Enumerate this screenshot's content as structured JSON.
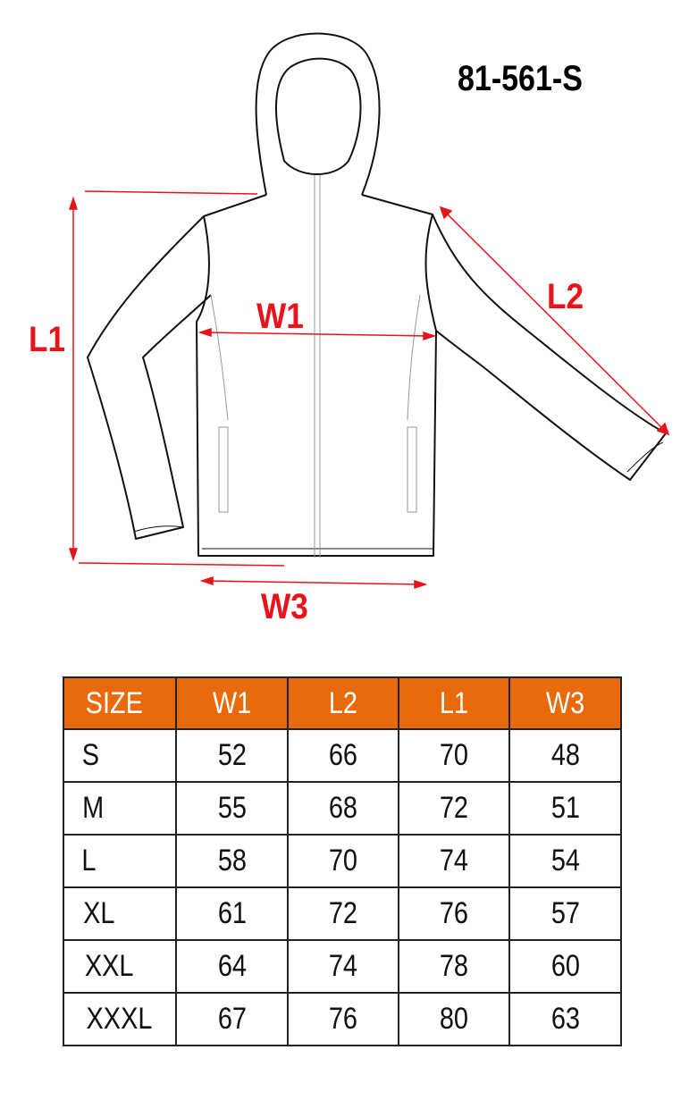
{
  "product_code": "81-561-S",
  "dimension_labels": {
    "l1": "L1",
    "w1": "W1",
    "l2": "L2",
    "w3": "W3"
  },
  "colors": {
    "header_bg": "#e96a0a",
    "dimension_arrows": "#e8141c"
  },
  "table": {
    "headers": [
      "SIZE",
      "W1",
      "L2",
      "L1",
      "W3"
    ],
    "rows": [
      [
        "S",
        "52",
        "66",
        "70",
        "48"
      ],
      [
        "M",
        "55",
        "68",
        "72",
        "51"
      ],
      [
        "L",
        "58",
        "70",
        "74",
        "54"
      ],
      [
        "XL",
        "61",
        "72",
        "76",
        "57"
      ],
      [
        "XXL",
        "64",
        "74",
        "78",
        "60"
      ],
      [
        "XXXL",
        "67",
        "76",
        "80",
        "63"
      ]
    ]
  }
}
